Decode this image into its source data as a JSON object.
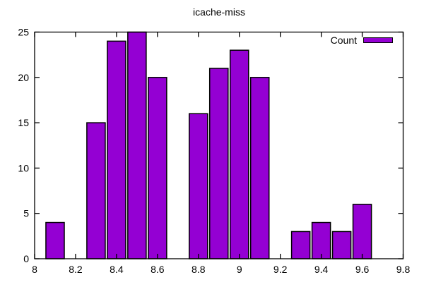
{
  "title": "icache-miss",
  "legend": {
    "label": "Count"
  },
  "chart_data": {
    "type": "bar",
    "subtype": "histogram",
    "title": "icache-miss",
    "xlabel": "",
    "ylabel": "",
    "series_name": "Count",
    "xlim": [
      8,
      9.8
    ],
    "ylim": [
      0,
      25
    ],
    "x_tick_labels": [
      "8",
      "8.2",
      "8.4",
      "8.6",
      "8.8",
      "9",
      "9.2",
      "9.4",
      "9.6",
      "9.8"
    ],
    "y_tick_labels": [
      "0",
      "5",
      "10",
      "15",
      "20",
      "25"
    ],
    "x": [
      8.1,
      8.3,
      8.4,
      8.5,
      8.6,
      8.8,
      8.9,
      9.0,
      9.1,
      9.3,
      9.4,
      9.5,
      9.6
    ],
    "values": [
      4,
      15,
      24,
      25,
      20,
      16,
      21,
      23,
      20,
      3,
      4,
      3,
      6
    ],
    "bar_width": 0.09,
    "bar_color": "#9400d3",
    "bar_border_color": "#000000",
    "axis_color": "#000000",
    "grid": false,
    "legend_position": "top-right-inside",
    "ticks_mirrored_inward": true
  }
}
